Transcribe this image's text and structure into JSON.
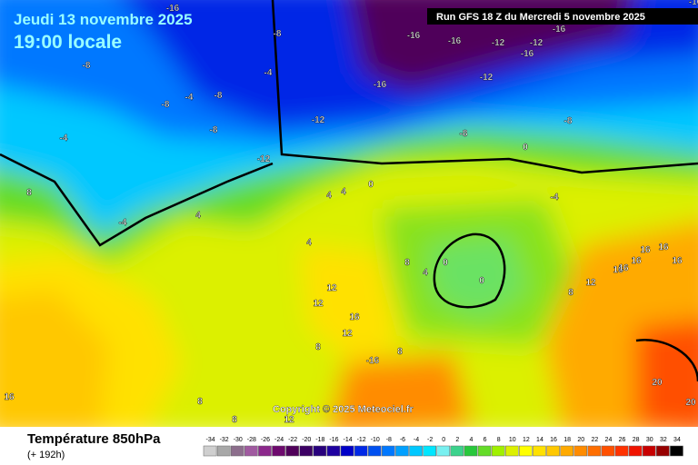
{
  "header": {
    "date": "Jeudi 13 novembre 2025",
    "time": "19:00 locale",
    "run": "Run GFS 18 Z du Mercredi 5 novembre 2025"
  },
  "copyright": "Copyright © 2025 Meteociel.fr",
  "footer": {
    "title": "Température 850hPa",
    "lead": "(+ 192h)"
  },
  "legend": {
    "values": [
      -34,
      -32,
      -30,
      -28,
      -26,
      -24,
      -22,
      -20,
      -18,
      -16,
      -14,
      -12,
      -10,
      -8,
      -6,
      -4,
      -2,
      0,
      2,
      4,
      6,
      8,
      10,
      12,
      14,
      16,
      18,
      20,
      22,
      24,
      26,
      28,
      30,
      32,
      34
    ],
    "colors": [
      "#cfcfcf",
      "#a8a8a8",
      "#8c6e8c",
      "#a05aa0",
      "#8c288c",
      "#6e0a6e",
      "#50005a",
      "#3c0064",
      "#28007d",
      "#1e00a0",
      "#0000c8",
      "#0028e6",
      "#0050f0",
      "#0078ff",
      "#00a0ff",
      "#00c8ff",
      "#00e6ff",
      "#78f0f0",
      "#3cd28c",
      "#28c83c",
      "#64dc28",
      "#a0f000",
      "#dcf000",
      "#ffff00",
      "#ffe100",
      "#ffc800",
      "#ffaa00",
      "#ff8c00",
      "#ff6e00",
      "#ff5000",
      "#ff3200",
      "#f01400",
      "#c80000",
      "#960000",
      "#000000"
    ]
  },
  "map_labels": [
    -16,
    -8,
    -8,
    -4,
    -8,
    -8,
    -4,
    -16,
    -12,
    -16,
    -12,
    -16,
    -12,
    -16,
    -16,
    -12,
    -16,
    -8,
    -8,
    -12,
    -8,
    -4,
    0,
    -4,
    8,
    4,
    4,
    4,
    0,
    4,
    8,
    -4,
    4,
    12,
    8,
    12,
    16,
    12,
    8,
    0,
    0,
    16,
    16,
    16,
    16,
    8,
    12,
    16,
    16,
    20,
    20,
    12,
    8,
    8,
    16,
    -16
  ]
}
